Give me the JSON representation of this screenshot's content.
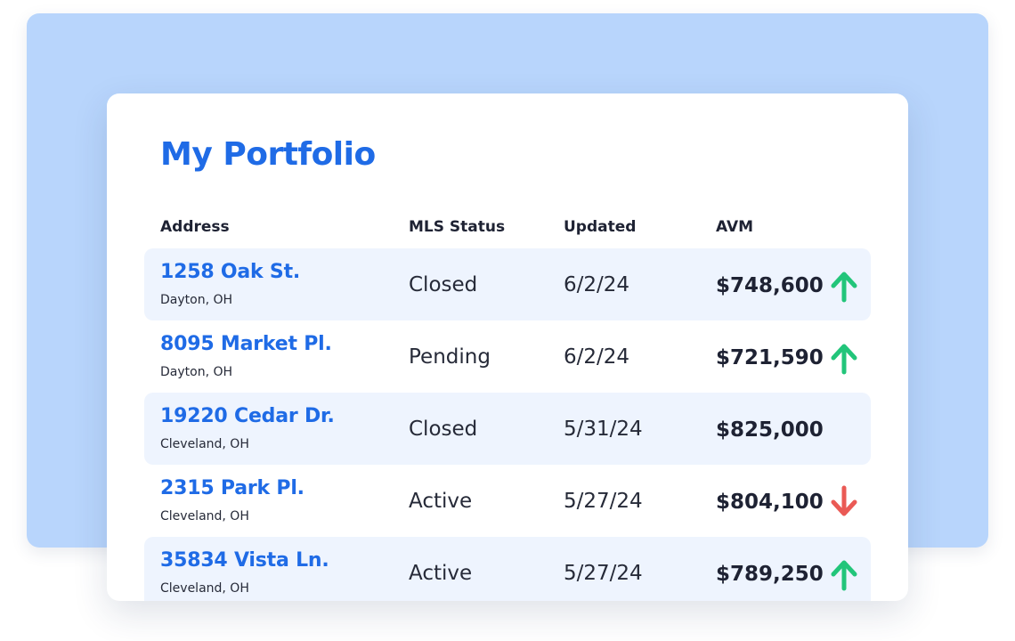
{
  "portfolio": {
    "title": "My Portfolio",
    "columns": {
      "address": "Address",
      "mls_status": "MLS Status",
      "updated": "Updated",
      "avm": "AVM"
    },
    "rows": [
      {
        "address": "1258 Oak St.",
        "city": "Dayton, OH",
        "mls_status": "Closed",
        "updated": "6/2/24",
        "avm": "$748,600",
        "trend": "up"
      },
      {
        "address": "8095 Market Pl.",
        "city": "Dayton, OH",
        "mls_status": "Pending",
        "updated": "6/2/24",
        "avm": "$721,590",
        "trend": "up"
      },
      {
        "address": "19220 Cedar Dr.",
        "city": "Cleveland, OH",
        "mls_status": "Closed",
        "updated": "5/31/24",
        "avm": "$825,000",
        "trend": "none"
      },
      {
        "address": "2315 Park Pl.",
        "city": "Cleveland, OH",
        "mls_status": "Active",
        "updated": "5/27/24",
        "avm": "$804,100",
        "trend": "down"
      },
      {
        "address": "35834 Vista Ln.",
        "city": "Cleveland, OH",
        "mls_status": "Active",
        "updated": "5/27/24",
        "avm": "$789,250",
        "trend": "up"
      }
    ]
  },
  "colors": {
    "accent": "#1f6be6",
    "up": "#22c57a",
    "down": "#ea5a55",
    "row_highlight": "#eef4fe",
    "backdrop": "#b8d5fc"
  },
  "icons": {
    "up": "arrow-up-icon",
    "down": "arrow-down-icon"
  }
}
